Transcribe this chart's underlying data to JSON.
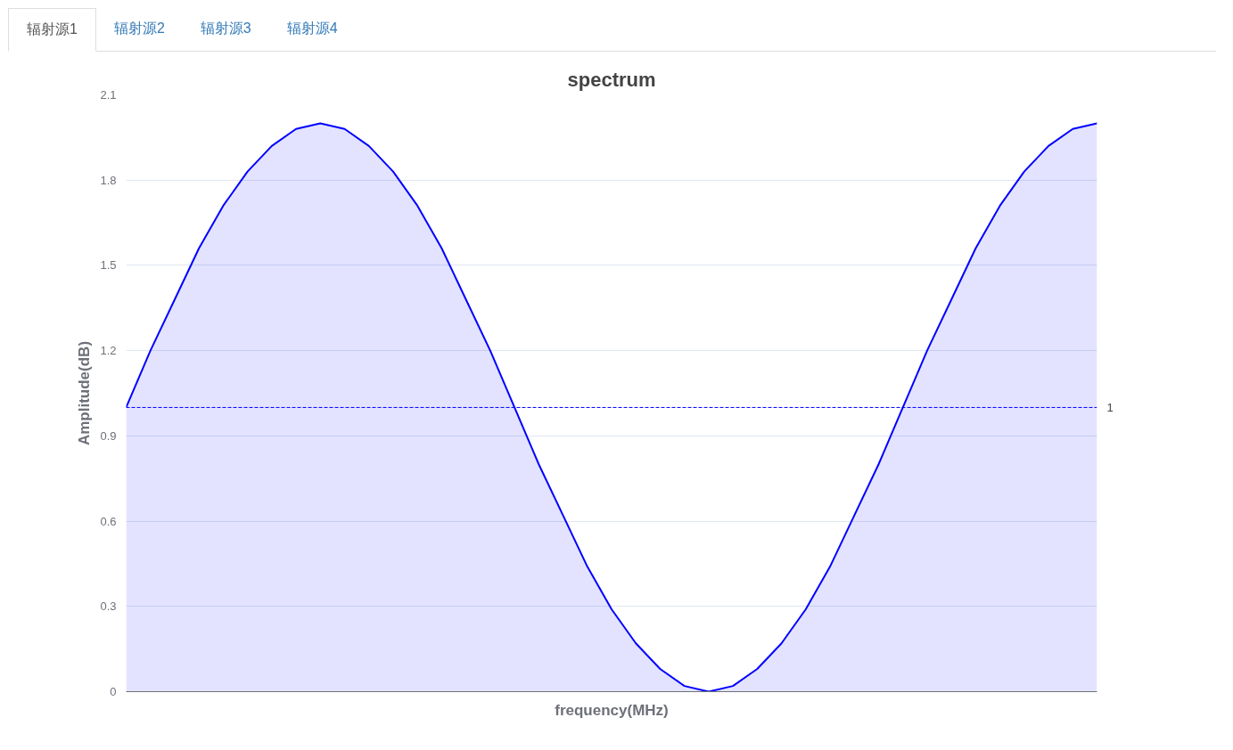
{
  "chart_data": {
    "type": "area",
    "title": "spectrum",
    "xlabel": "frequency(MHz)",
    "ylabel": "Amplitude(dB)",
    "annotations": [
      "辐射源1",
      "辐射源2",
      "辐射源3",
      "辐射源4"
    ],
    "categories": [
      null,
      null,
      null,
      null,
      null,
      null,
      null,
      null,
      null,
      null,
      null,
      null,
      null,
      null,
      null,
      null,
      null,
      null,
      null,
      null,
      null,
      null,
      null,
      null,
      null,
      null,
      null,
      null,
      null,
      null,
      null,
      null,
      null,
      null,
      null,
      null,
      null,
      null,
      null,
      null,
      null
    ],
    "series": [
      {
        "color": "#0000ff",
        "values": [
          1.0,
          1.2,
          1.38,
          1.56,
          1.71,
          1.83,
          1.92,
          1.98,
          2.0,
          1.98,
          1.92,
          1.83,
          1.71,
          1.56,
          1.38,
          1.2,
          1.0,
          0.8,
          0.62,
          0.44,
          0.29,
          0.17,
          0.08,
          0.02,
          0.0,
          0.02,
          0.08,
          0.17,
          0.29,
          0.44,
          0.62,
          0.8,
          1.0,
          1.2,
          1.38,
          1.56,
          1.71,
          1.83,
          1.92,
          1.98,
          2.0
        ]
      }
    ],
    "ylim": [
      0,
      2.1
    ],
    "yticks": [
      0,
      0.3,
      0.6,
      0.9,
      1.2,
      1.5,
      1.8,
      2.1
    ],
    "grid": "y",
    "line_style": "solid",
    "ref_lines": [
      {
        "axis": "y",
        "value": 1,
        "label": "1",
        "color": "#0000ff",
        "line_style": "dashed"
      }
    ]
  }
}
